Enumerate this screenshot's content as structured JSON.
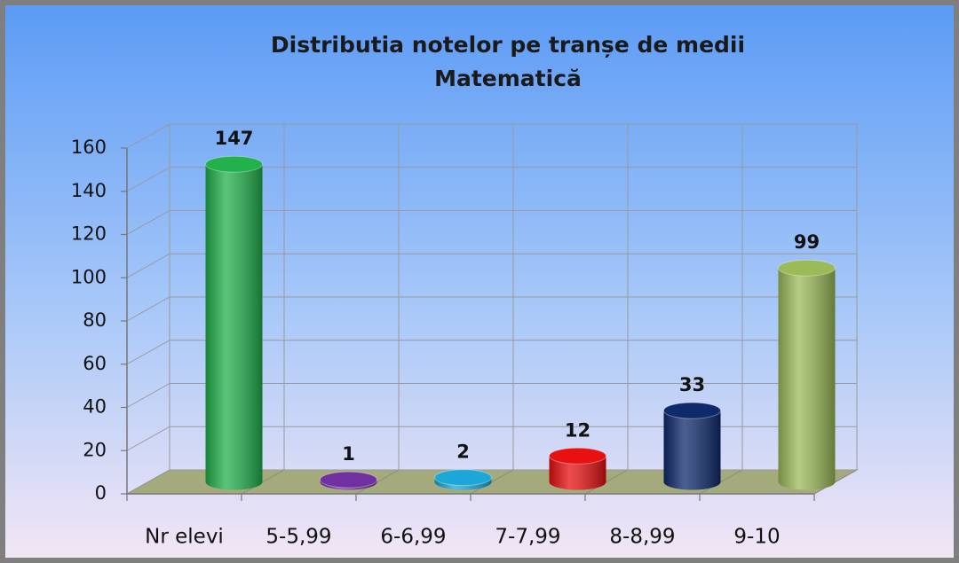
{
  "chart_data": {
    "type": "bar3d",
    "title": [
      "Distributia  notelor pe tranșe de medii",
      "Matematică"
    ],
    "categories": [
      "Nr elevi",
      "5-5,99",
      "6-6,99",
      "7-7,99",
      "8-8,99",
      "9-10"
    ],
    "values": [
      147,
      1,
      2,
      12,
      33,
      99
    ],
    "colors": [
      "#22b14c",
      "#7030a0",
      "#1ba8d8",
      "#e81010",
      "#0e2a6b",
      "#9bbb59"
    ],
    "ylim": [
      0,
      160
    ],
    "yticks": [
      0,
      20,
      40,
      60,
      80,
      100,
      120,
      140,
      160
    ],
    "grid": true
  }
}
